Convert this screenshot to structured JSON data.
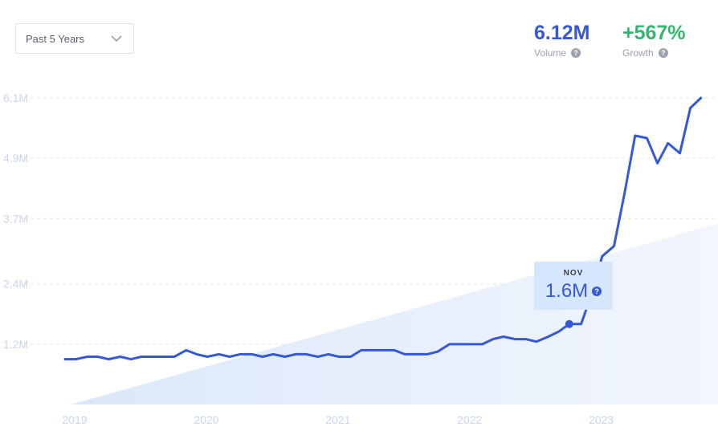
{
  "range_select": {
    "label": "Past 5 Years",
    "icon": "chevron-down-icon"
  },
  "stats": {
    "volume": {
      "value": "6.12M",
      "label": "Volume",
      "color": "#3558d6"
    },
    "growth": {
      "value": "+567%",
      "label": "Growth",
      "color": "#34b76e"
    }
  },
  "tooltip": {
    "month": "NOV",
    "value": "1.6M"
  },
  "chart_data": {
    "type": "line",
    "x_ticks": [
      "2019",
      "2020",
      "2021",
      "2022",
      "2023"
    ],
    "y_ticks": [
      "1.2M",
      "2.4M",
      "3.7M",
      "4.9M",
      "6.1M"
    ],
    "y_tick_values": [
      1.2,
      2.4,
      3.7,
      4.9,
      6.1
    ],
    "ylim": [
      0,
      6.1
    ],
    "xlim": [
      2019,
      2023.85
    ],
    "grid": true,
    "series": [
      {
        "color": "#3558d6",
        "x": [
          2019.0,
          2019.08,
          2019.17,
          2019.25,
          2019.33,
          2019.42,
          2019.5,
          2019.58,
          2019.67,
          2019.75,
          2019.83,
          2019.92,
          2020.0,
          2020.08,
          2020.17,
          2020.25,
          2020.33,
          2020.42,
          2020.5,
          2020.58,
          2020.67,
          2020.75,
          2020.83,
          2020.92,
          2021.0,
          2021.08,
          2021.17,
          2021.25,
          2021.33,
          2021.42,
          2021.5,
          2021.58,
          2021.67,
          2021.75,
          2021.83,
          2021.92,
          2022.0,
          2022.08,
          2022.17,
          2022.25,
          2022.33,
          2022.42,
          2022.5,
          2022.58,
          2022.67,
          2022.75,
          2022.83,
          2022.92,
          2023.0,
          2023.08,
          2023.17,
          2023.25,
          2023.33,
          2023.42,
          2023.5,
          2023.58,
          2023.67,
          2023.75,
          2023.83
        ],
        "values": [
          0.9,
          0.9,
          0.95,
          0.95,
          0.9,
          0.95,
          0.9,
          0.95,
          0.95,
          0.95,
          0.95,
          1.08,
          1.0,
          0.95,
          1.0,
          0.95,
          1.0,
          1.0,
          0.95,
          1.0,
          0.95,
          1.0,
          1.0,
          0.95,
          1.0,
          0.95,
          0.95,
          1.08,
          1.08,
          1.08,
          1.08,
          1.0,
          1.0,
          1.0,
          1.05,
          1.2,
          1.2,
          1.2,
          1.2,
          1.3,
          1.35,
          1.3,
          1.3,
          1.25,
          1.35,
          1.45,
          1.6,
          1.6,
          2.2,
          2.95,
          3.15,
          4.2,
          5.35,
          5.3,
          4.8,
          5.2,
          5.0,
          5.9,
          6.1
        ]
      }
    ],
    "trend": {
      "start": 0,
      "end": 3.6
    },
    "highlight": {
      "x": 2022.83,
      "value": 1.6,
      "label": "NOV"
    }
  }
}
